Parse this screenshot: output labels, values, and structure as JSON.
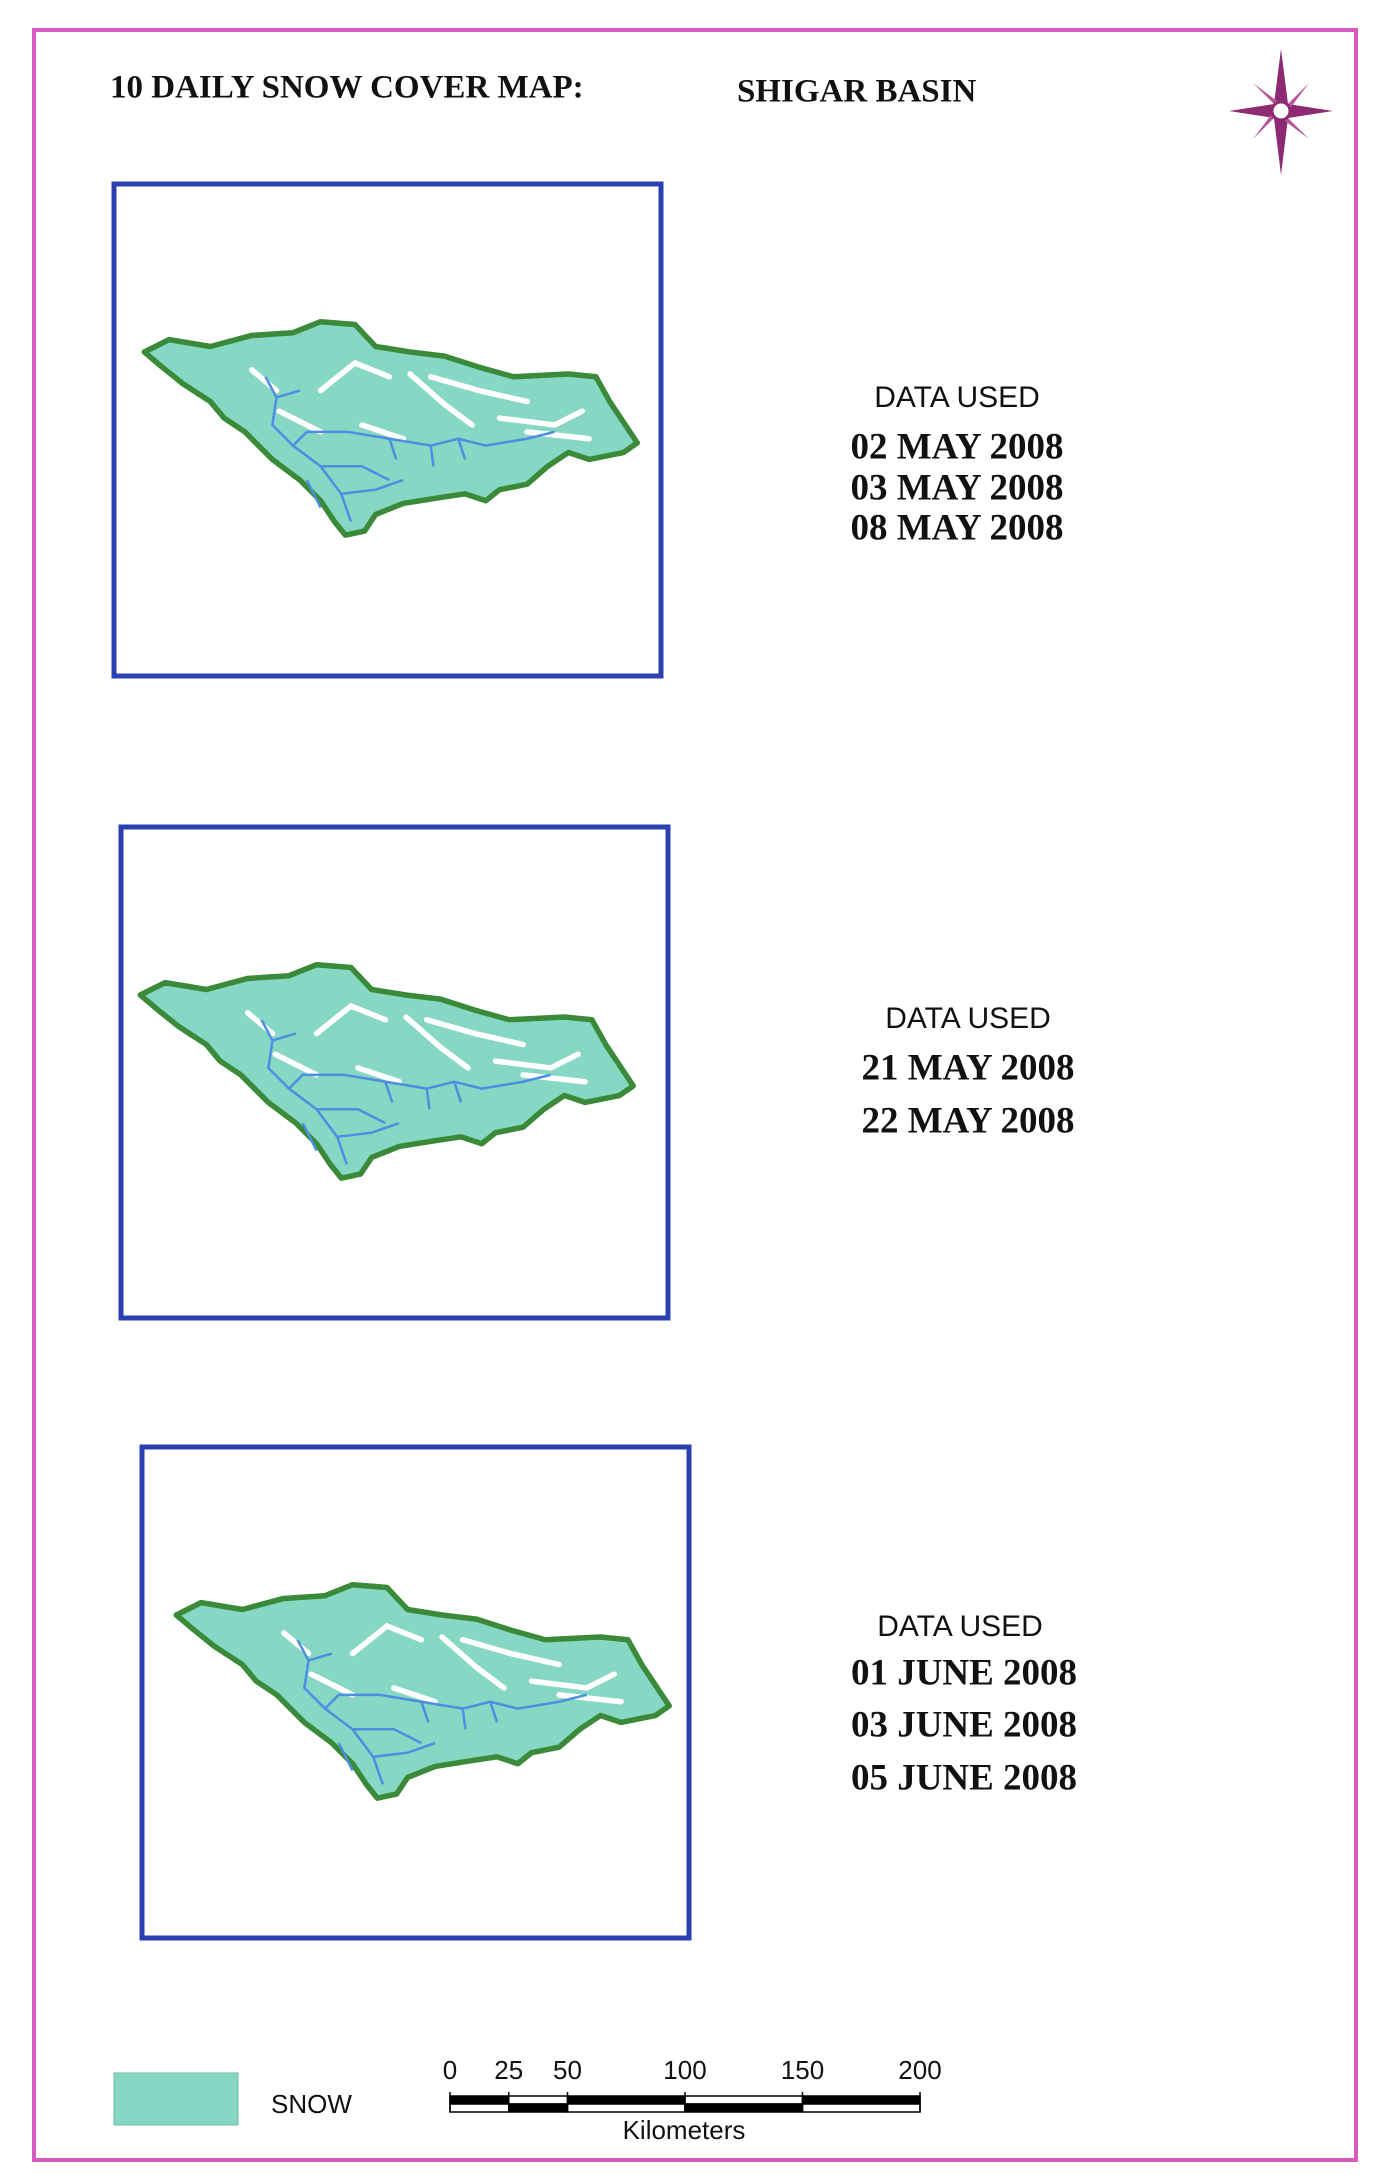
{
  "header": {
    "title": "10 DAILY SNOW COVER MAP:",
    "basin": "SHIGAR BASIN"
  },
  "panels": [
    {
      "heading": "DATA USED",
      "dates": [
        "02 MAY 2008",
        "03 MAY 2008",
        "08 MAY 2008"
      ]
    },
    {
      "heading": "DATA USED",
      "dates": [
        "21 MAY 2008",
        "22 MAY 2008"
      ]
    },
    {
      "heading": "DATA USED",
      "dates": [
        "01 JUNE 2008",
        "03 JUNE 2008",
        "05 JUNE 2008"
      ]
    }
  ],
  "legend": {
    "label": "SNOW"
  },
  "scale_bar": {
    "ticks": [
      0,
      25,
      50,
      100,
      150,
      200
    ],
    "unit": "Kilometers"
  }
}
